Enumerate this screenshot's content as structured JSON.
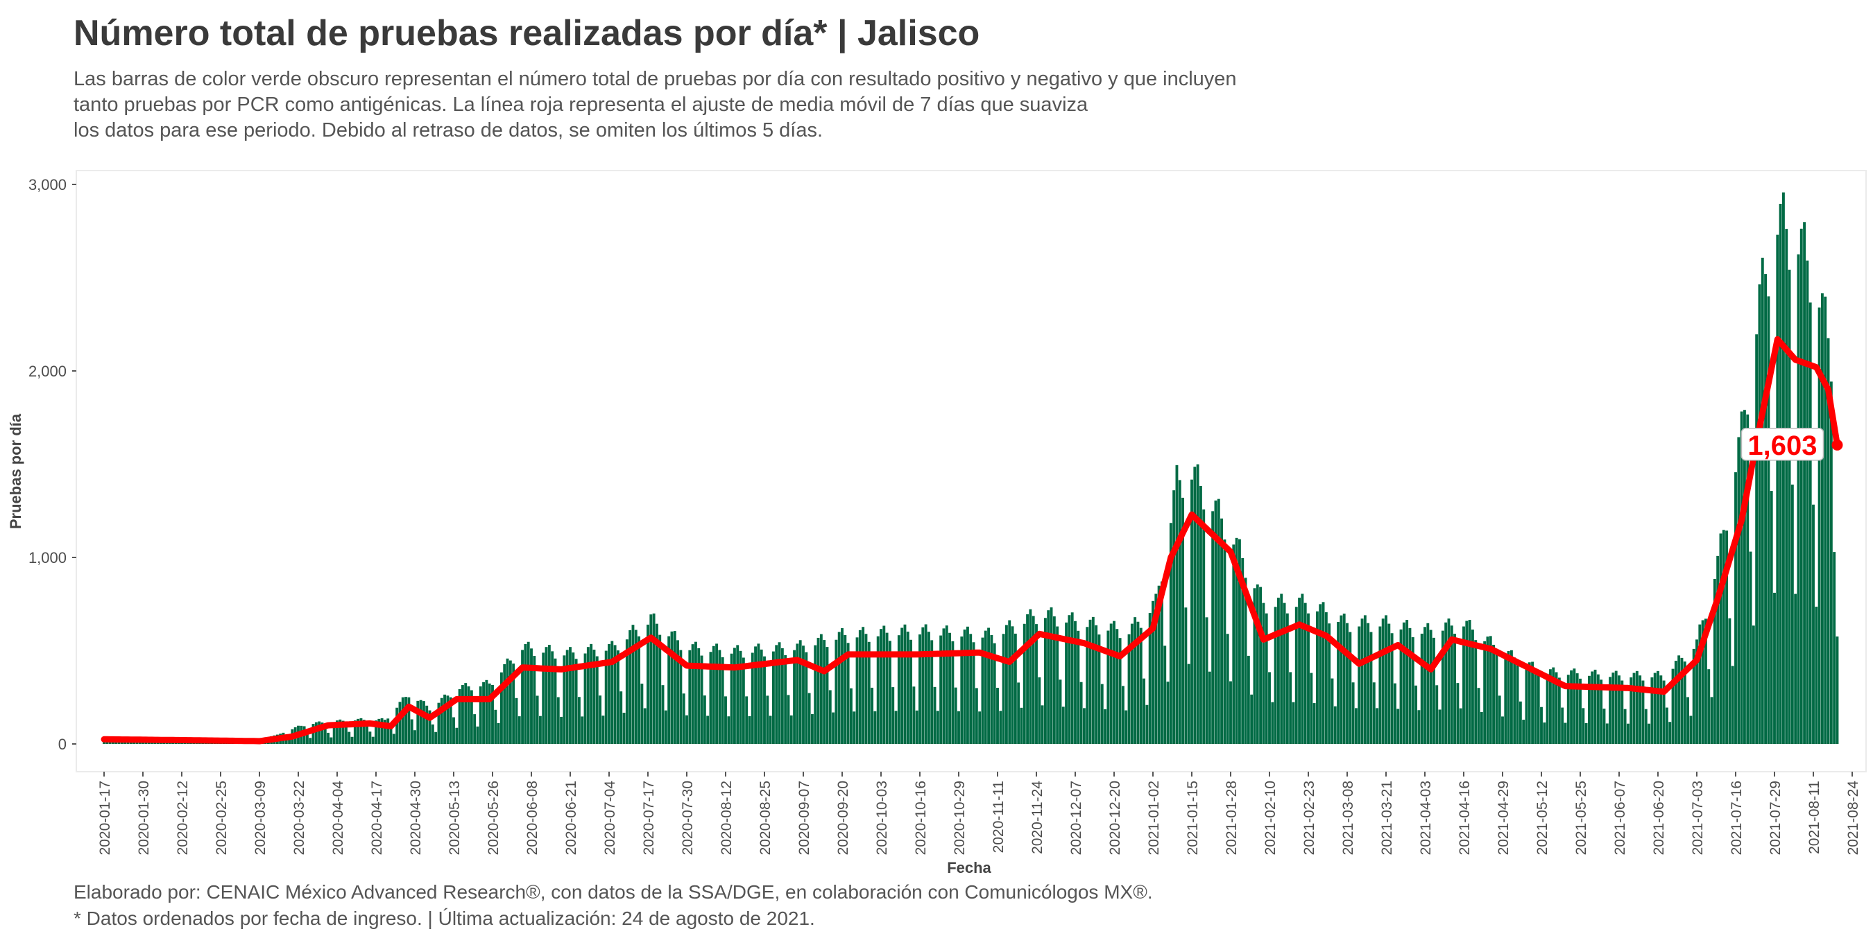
{
  "header": {
    "title": "Número total de pruebas realizadas por día* | Jalisco",
    "subtitle_lines": [
      "Las barras de color verde obscuro representan el número total de pruebas por día con resultado positivo y negativo y que incluyen",
      "tanto pruebas por PCR como antigénicas. La línea roja representa el ajuste de media móvil de 7 días que suaviza",
      "los datos para ese periodo. Debido al retraso de datos, se omiten los últimos 5 días."
    ]
  },
  "footer": {
    "caption_lines": [
      "Elaborado por: CENAIC México Advanced Research®, con datos de la SSA/DGE, en colaboración con Comunicólogos MX®.",
      "* Datos ordenados por fecha de ingreso. | Última actualización: 24 de agosto de 2021."
    ]
  },
  "colors": {
    "bars": "#006a44",
    "line": "#ff0000",
    "label_text": "#ff0000",
    "grid_border": "#e6e6e6"
  },
  "chart_data": {
    "type": "bar",
    "xlabel": "Fecha",
    "ylabel": "Pruebas por día",
    "ylim": [
      0,
      3100
    ],
    "yticks": [
      0,
      1000,
      2000,
      3000
    ],
    "ytick_labels": [
      "0",
      "1,000",
      "2,000",
      "3,000"
    ],
    "x_start": "2020-01-17",
    "x_end": "2021-08-24",
    "xtick_labels": [
      "2020-01-17",
      "2020-01-30",
      "2020-02-12",
      "2020-02-25",
      "2020-03-09",
      "2020-03-22",
      "2020-04-04",
      "2020-04-17",
      "2020-04-30",
      "2020-05-13",
      "2020-05-26",
      "2020-06-08",
      "2020-06-21",
      "2020-07-04",
      "2020-07-17",
      "2020-07-30",
      "2020-08-12",
      "2020-08-25",
      "2020-09-07",
      "2020-09-20",
      "2020-10-03",
      "2020-10-16",
      "2020-10-29",
      "2020-11-11",
      "2020-11-24",
      "2020-12-07",
      "2020-12-20",
      "2021-01-02",
      "2021-01-15",
      "2021-01-28",
      "2021-02-10",
      "2021-02-23",
      "2021-03-08",
      "2021-03-21",
      "2021-04-03",
      "2021-04-16",
      "2021-04-29",
      "2021-05-12",
      "2021-05-25",
      "2021-06-07",
      "2021-06-20",
      "2021-07-03",
      "2021-07-16",
      "2021-07-29",
      "2021-08-11",
      "2021-08-24"
    ],
    "bars_first_date": "2020-01-17",
    "bars_last_date": "2021-08-19",
    "last_value_label": "1,603",
    "daily_tests_keypoints": [
      [
        "2020-01-17",
        20
      ],
      [
        "2020-03-08",
        20
      ],
      [
        "2020-03-15",
        50
      ],
      [
        "2020-03-25",
        100
      ],
      [
        "2020-04-10",
        120
      ],
      [
        "2020-04-20",
        120
      ],
      [
        "2020-04-28",
        250
      ],
      [
        "2020-05-05",
        180
      ],
      [
        "2020-05-15",
        280
      ],
      [
        "2020-05-25",
        300
      ],
      [
        "2020-06-05",
        480
      ],
      [
        "2020-06-20",
        450
      ],
      [
        "2020-07-05",
        480
      ],
      [
        "2020-07-18",
        620
      ],
      [
        "2020-07-30",
        480
      ],
      [
        "2020-08-15",
        460
      ],
      [
        "2020-09-05",
        480
      ],
      [
        "2020-09-20",
        540
      ],
      [
        "2020-10-15",
        560
      ],
      [
        "2020-11-10",
        540
      ],
      [
        "2020-11-25",
        650
      ],
      [
        "2020-12-10",
        600
      ],
      [
        "2020-12-25",
        560
      ],
      [
        "2021-01-03",
        700
      ],
      [
        "2021-01-10",
        1300
      ],
      [
        "2021-01-15",
        1350
      ],
      [
        "2021-01-28",
        1050
      ],
      [
        "2021-02-08",
        700
      ],
      [
        "2021-02-23",
        700
      ],
      [
        "2021-03-08",
        600
      ],
      [
        "2021-03-21",
        600
      ],
      [
        "2021-04-03",
        560
      ],
      [
        "2021-04-16",
        600
      ],
      [
        "2021-04-29",
        460
      ],
      [
        "2021-05-12",
        360
      ],
      [
        "2021-06-07",
        340
      ],
      [
        "2021-06-22",
        340
      ],
      [
        "2021-07-03",
        500
      ],
      [
        "2021-07-10",
        900
      ],
      [
        "2021-07-18",
        1550
      ],
      [
        "2021-07-24",
        2200
      ],
      [
        "2021-07-30",
        2600
      ],
      [
        "2021-08-06",
        2500
      ],
      [
        "2021-08-12",
        2300
      ],
      [
        "2021-08-19",
        1800
      ]
    ],
    "moving_average_keypoints": [
      [
        "2020-01-17",
        25
      ],
      [
        "2020-02-15",
        20
      ],
      [
        "2020-03-09",
        15
      ],
      [
        "2020-03-20",
        40
      ],
      [
        "2020-04-01",
        100
      ],
      [
        "2020-04-15",
        110
      ],
      [
        "2020-04-22",
        95
      ],
      [
        "2020-04-28",
        200
      ],
      [
        "2020-05-05",
        140
      ],
      [
        "2020-05-14",
        240
      ],
      [
        "2020-05-25",
        240
      ],
      [
        "2020-06-05",
        410
      ],
      [
        "2020-06-18",
        400
      ],
      [
        "2020-07-05",
        440
      ],
      [
        "2020-07-18",
        570
      ],
      [
        "2020-07-30",
        420
      ],
      [
        "2020-08-15",
        410
      ],
      [
        "2020-09-05",
        450
      ],
      [
        "2020-09-14",
        390
      ],
      [
        "2020-09-22",
        480
      ],
      [
        "2020-10-15",
        480
      ],
      [
        "2020-11-05",
        490
      ],
      [
        "2020-11-15",
        440
      ],
      [
        "2020-11-25",
        590
      ],
      [
        "2020-12-10",
        540
      ],
      [
        "2020-12-22",
        470
      ],
      [
        "2021-01-02",
        620
      ],
      [
        "2021-01-08",
        1000
      ],
      [
        "2021-01-15",
        1230
      ],
      [
        "2021-01-28",
        1030
      ],
      [
        "2021-02-08",
        560
      ],
      [
        "2021-02-20",
        640
      ],
      [
        "2021-03-01",
        580
      ],
      [
        "2021-03-12",
        430
      ],
      [
        "2021-03-25",
        530
      ],
      [
        "2021-04-05",
        400
      ],
      [
        "2021-04-12",
        560
      ],
      [
        "2021-04-25",
        510
      ],
      [
        "2021-05-10",
        390
      ],
      [
        "2021-05-20",
        310
      ],
      [
        "2021-06-10",
        300
      ],
      [
        "2021-06-22",
        280
      ],
      [
        "2021-07-03",
        450
      ],
      [
        "2021-07-10",
        780
      ],
      [
        "2021-07-18",
        1200
      ],
      [
        "2021-07-24",
        1700
      ],
      [
        "2021-07-30",
        2170
      ],
      [
        "2021-08-05",
        2060
      ],
      [
        "2021-08-12",
        2020
      ],
      [
        "2021-08-16",
        1900
      ],
      [
        "2021-08-19",
        1603
      ]
    ]
  }
}
